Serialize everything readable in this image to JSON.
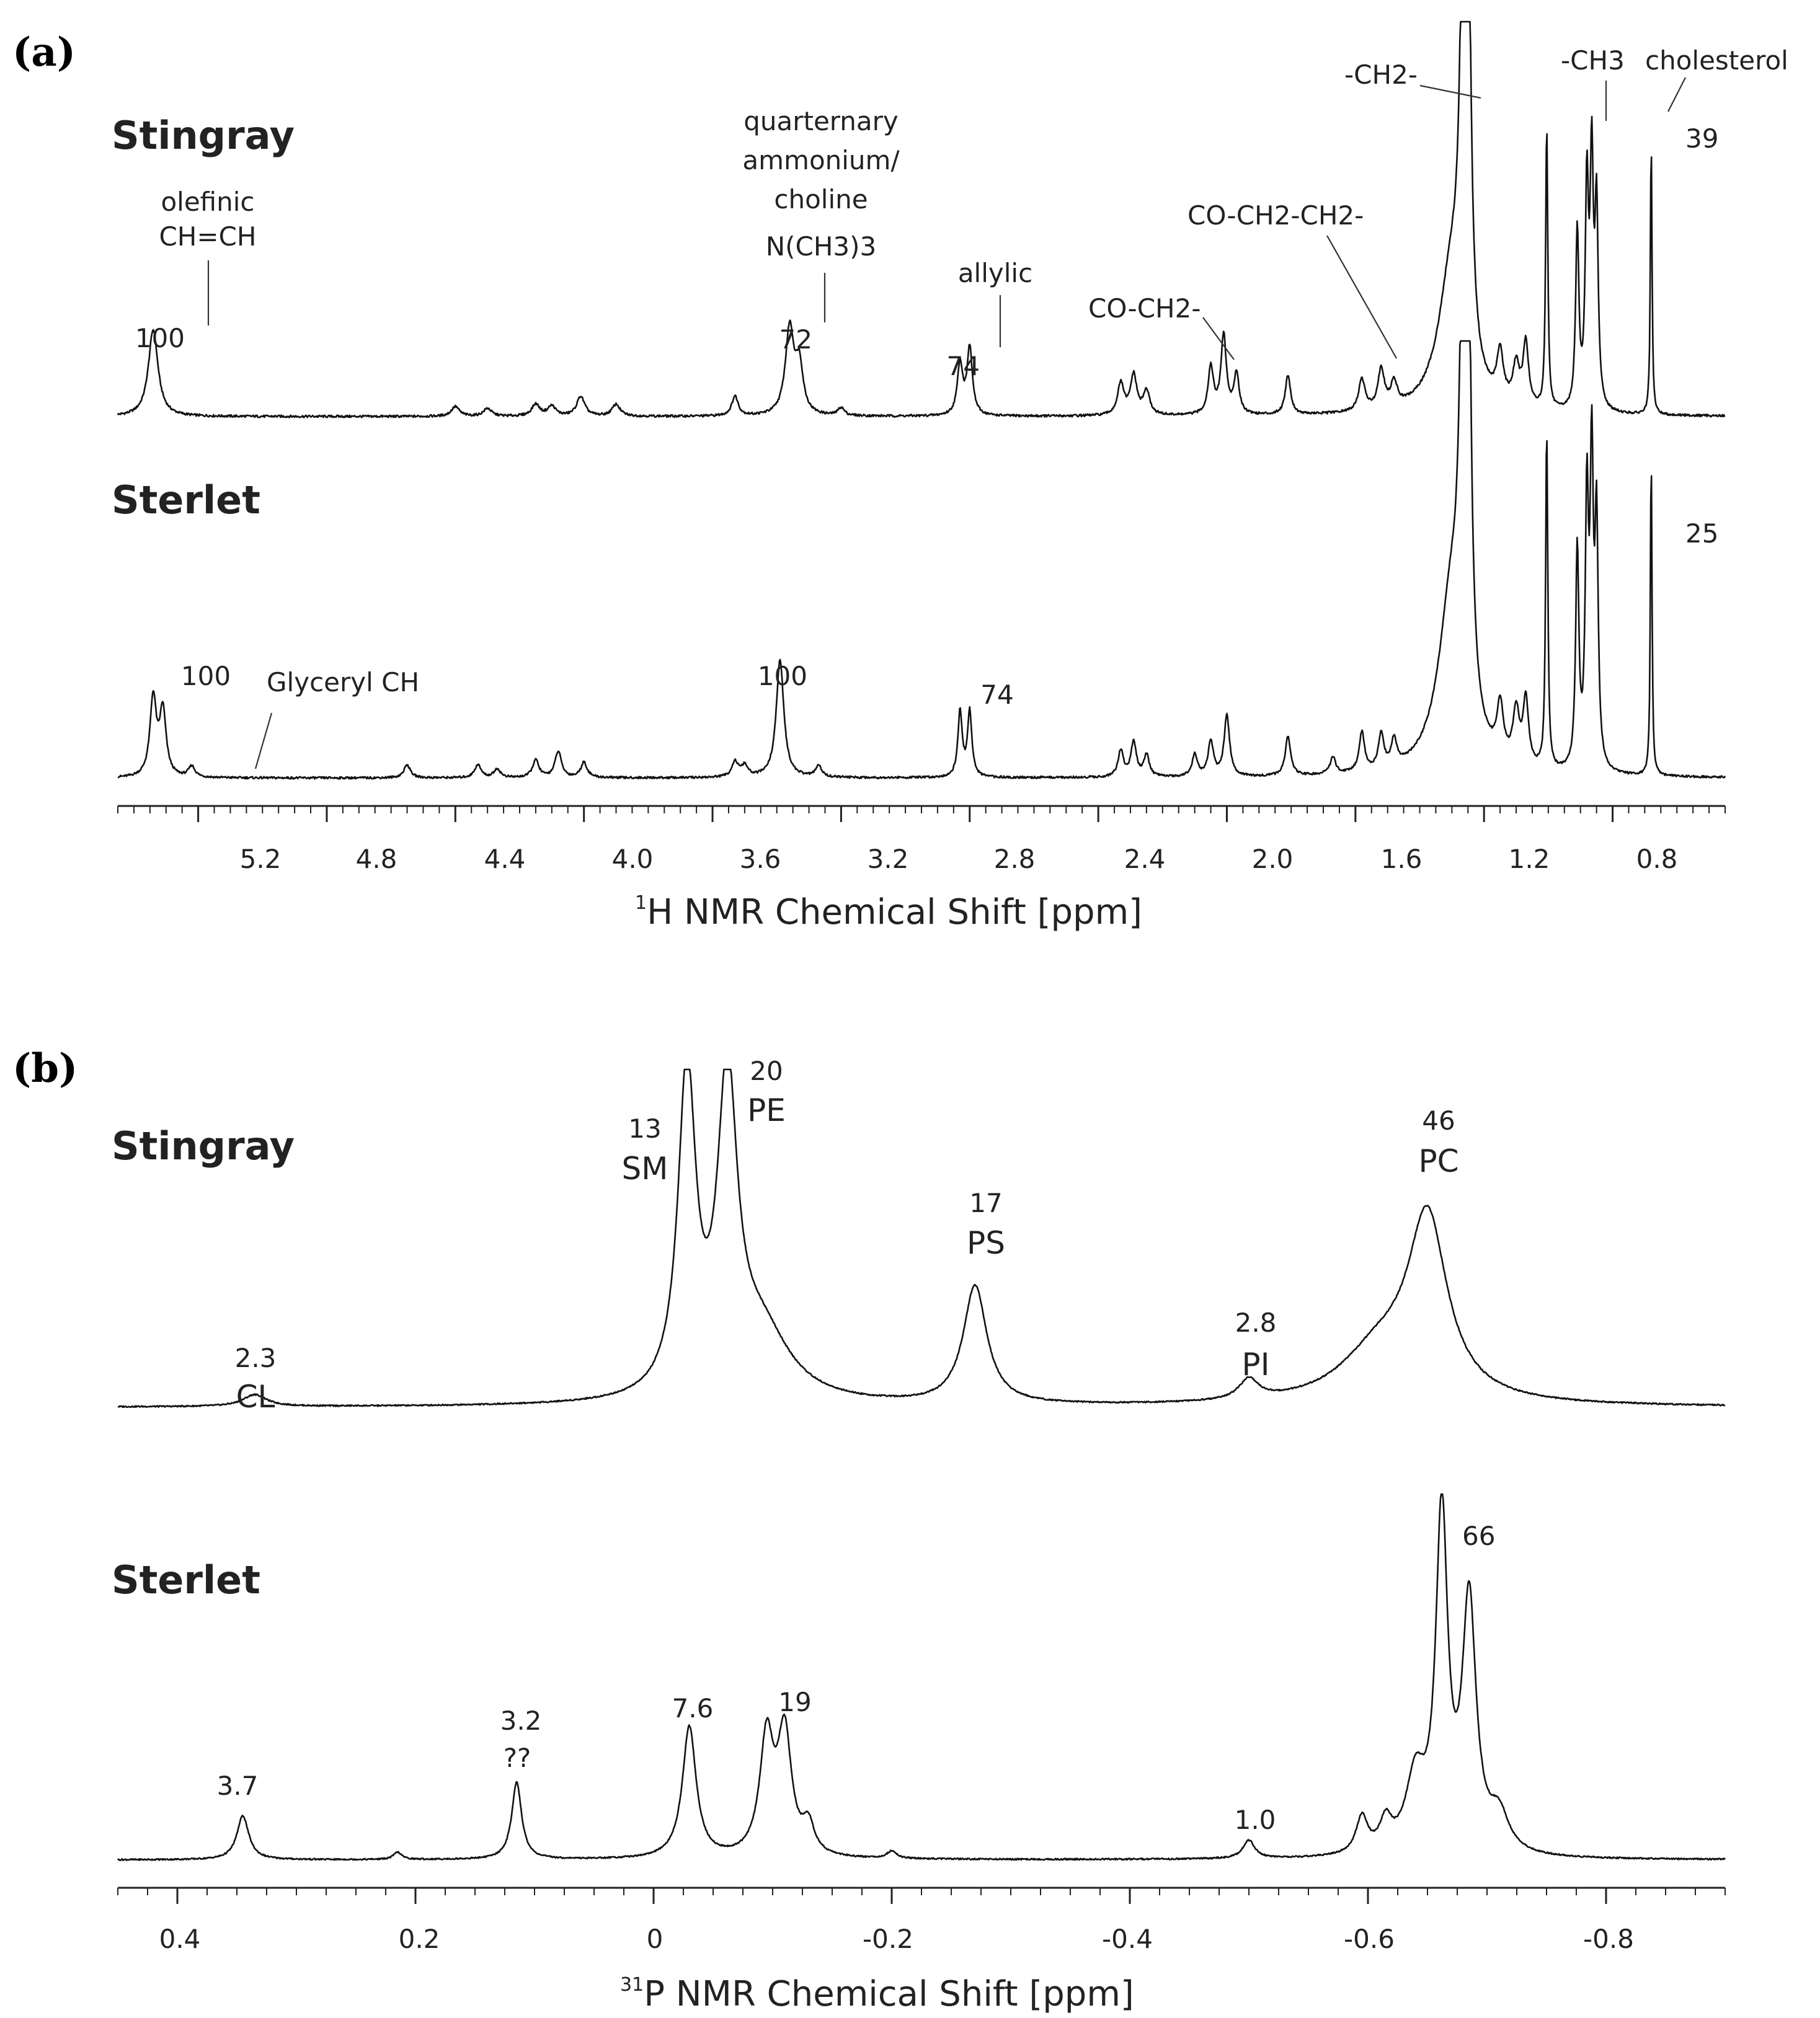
{
  "chart_data": [
    {
      "type": "line",
      "panel_label": "(a)",
      "xlabel": "1H NMR Chemical Shift [ppm]",
      "xlim": [
        5.45,
        0.45
      ],
      "xticks": [
        5.2,
        4.8,
        4.4,
        4.0,
        3.6,
        3.2,
        2.8,
        2.4,
        2.0,
        1.6,
        1.2,
        0.8
      ],
      "tick_labels": [
        "5.2",
        "4.8",
        "4.4",
        "4.0",
        "3.6",
        "3.2",
        "2.8",
        "2.4",
        "2.0",
        "1.6",
        "1.2",
        "0.8"
      ],
      "series": [
        {
          "name": "Stingray",
          "peaks": [
            {
              "ppm": 5.34,
              "height": 0.22,
              "width": 0.018
            },
            {
              "ppm": 4.4,
              "height": 0.025,
              "width": 0.015
            },
            {
              "ppm": 4.3,
              "height": 0.02,
              "width": 0.015
            },
            {
              "ppm": 4.15,
              "height": 0.03,
              "width": 0.015
            },
            {
              "ppm": 4.1,
              "height": 0.025,
              "width": 0.015
            },
            {
              "ppm": 4.01,
              "height": 0.05,
              "width": 0.015
            },
            {
              "ppm": 3.9,
              "height": 0.03,
              "width": 0.015
            },
            {
              "ppm": 3.53,
              "height": 0.05,
              "width": 0.012
            },
            {
              "ppm": 3.36,
              "height": 0.22,
              "width": 0.016
            },
            {
              "ppm": 3.33,
              "height": 0.12,
              "width": 0.014
            },
            {
              "ppm": 3.2,
              "height": 0.02,
              "width": 0.012
            },
            {
              "ppm": 2.83,
              "height": 0.13,
              "width": 0.01
            },
            {
              "ppm": 2.8,
              "height": 0.17,
              "width": 0.01
            },
            {
              "ppm": 2.33,
              "height": 0.08,
              "width": 0.012
            },
            {
              "ppm": 2.29,
              "height": 0.1,
              "width": 0.012
            },
            {
              "ppm": 2.25,
              "height": 0.06,
              "width": 0.012
            },
            {
              "ppm": 2.05,
              "height": 0.12,
              "width": 0.01
            },
            {
              "ppm": 2.01,
              "height": 0.2,
              "width": 0.01
            },
            {
              "ppm": 1.97,
              "height": 0.1,
              "width": 0.01
            },
            {
              "ppm": 1.81,
              "height": 0.1,
              "width": 0.01
            },
            {
              "ppm": 1.58,
              "height": 0.08,
              "width": 0.012
            },
            {
              "ppm": 1.52,
              "height": 0.1,
              "width": 0.012
            },
            {
              "ppm": 1.48,
              "height": 0.06,
              "width": 0.012
            },
            {
              "ppm": 1.3,
              "height": 0.35,
              "width": 0.05
            },
            {
              "ppm": 1.265,
              "height": 0.9,
              "width": 0.012
            },
            {
              "ppm": 1.25,
              "height": 1.0,
              "width": 0.01
            },
            {
              "ppm": 1.15,
              "height": 0.12,
              "width": 0.012
            },
            {
              "ppm": 1.1,
              "height": 0.1,
              "width": 0.012
            },
            {
              "ppm": 1.07,
              "height": 0.16,
              "width": 0.01
            },
            {
              "ppm": 1.005,
              "height": 0.72,
              "width": 0.004
            },
            {
              "ppm": 0.91,
              "height": 0.45,
              "width": 0.006
            },
            {
              "ppm": 0.88,
              "height": 0.55,
              "width": 0.006
            },
            {
              "ppm": 0.865,
              "height": 0.6,
              "width": 0.006
            },
            {
              "ppm": 0.85,
              "height": 0.5,
              "width": 0.006
            },
            {
              "ppm": 0.68,
              "height": 0.7,
              "width": 0.003
            }
          ]
        },
        {
          "name": "Sterlet",
          "peaks": [
            {
              "ppm": 5.34,
              "height": 0.18,
              "width": 0.012
            },
            {
              "ppm": 5.31,
              "height": 0.15,
              "width": 0.012
            },
            {
              "ppm": 5.22,
              "height": 0.025,
              "width": 0.012
            },
            {
              "ppm": 4.55,
              "height": 0.03,
              "width": 0.012
            },
            {
              "ppm": 4.33,
              "height": 0.03,
              "width": 0.012
            },
            {
              "ppm": 4.27,
              "height": 0.02,
              "width": 0.012
            },
            {
              "ppm": 4.15,
              "height": 0.04,
              "width": 0.012
            },
            {
              "ppm": 4.08,
              "height": 0.06,
              "width": 0.012
            },
            {
              "ppm": 4.0,
              "height": 0.035,
              "width": 0.012
            },
            {
              "ppm": 3.53,
              "height": 0.035,
              "width": 0.012
            },
            {
              "ppm": 3.5,
              "height": 0.025,
              "width": 0.012
            },
            {
              "ppm": 3.39,
              "height": 0.27,
              "width": 0.014
            },
            {
              "ppm": 3.27,
              "height": 0.025,
              "width": 0.012
            },
            {
              "ppm": 2.83,
              "height": 0.15,
              "width": 0.008
            },
            {
              "ppm": 2.8,
              "height": 0.15,
              "width": 0.008
            },
            {
              "ppm": 2.33,
              "height": 0.06,
              "width": 0.01
            },
            {
              "ppm": 2.29,
              "height": 0.08,
              "width": 0.01
            },
            {
              "ppm": 2.25,
              "height": 0.05,
              "width": 0.01
            },
            {
              "ppm": 2.1,
              "height": 0.05,
              "width": 0.01
            },
            {
              "ppm": 2.05,
              "height": 0.08,
              "width": 0.01
            },
            {
              "ppm": 2.0,
              "height": 0.14,
              "width": 0.01
            },
            {
              "ppm": 1.81,
              "height": 0.09,
              "width": 0.01
            },
            {
              "ppm": 1.67,
              "height": 0.04,
              "width": 0.01
            },
            {
              "ppm": 1.58,
              "height": 0.09,
              "width": 0.01
            },
            {
              "ppm": 1.52,
              "height": 0.08,
              "width": 0.01
            },
            {
              "ppm": 1.48,
              "height": 0.06,
              "width": 0.01
            },
            {
              "ppm": 1.3,
              "height": 0.4,
              "width": 0.05
            },
            {
              "ppm": 1.265,
              "height": 0.9,
              "width": 0.012
            },
            {
              "ppm": 1.25,
              "height": 1.0,
              "width": 0.01
            },
            {
              "ppm": 1.15,
              "height": 0.12,
              "width": 0.012
            },
            {
              "ppm": 1.1,
              "height": 0.12,
              "width": 0.012
            },
            {
              "ppm": 1.07,
              "height": 0.15,
              "width": 0.01
            },
            {
              "ppm": 1.005,
              "height": 0.78,
              "width": 0.004
            },
            {
              "ppm": 0.91,
              "height": 0.5,
              "width": 0.006
            },
            {
              "ppm": 0.88,
              "height": 0.6,
              "width": 0.006
            },
            {
              "ppm": 0.865,
              "height": 0.68,
              "width": 0.006
            },
            {
              "ppm": 0.85,
              "height": 0.55,
              "width": 0.006
            },
            {
              "ppm": 0.68,
              "height": 0.74,
              "width": 0.003
            }
          ]
        }
      ],
      "labels": {
        "stingray": {
          "olefinic_line1": "olefinic",
          "olefinic_line2": "CH=CH",
          "olefinic_value": "100",
          "qa_line1": "quarternary",
          "qa_line2": "ammonium/",
          "qa_line3": "choline",
          "qa_line4": "N(CH3)3",
          "qa_value": "72",
          "allylic": "allylic",
          "allylic_value": "74",
          "co_ch2": "CO-CH2-",
          "co_ch2_ch2": "CO-CH2-CH2-",
          "ch2": "-CH2-",
          "ch3": "-CH3",
          "cholesterol": "cholesterol",
          "cholesterol_value": "39"
        },
        "sterlet": {
          "olefinic_value": "100",
          "glyceryl": "Glyceryl CH",
          "choline_value": "100",
          "allylic_value": "74",
          "cholesterol_value": "25"
        }
      }
    },
    {
      "type": "line",
      "panel_label": "(b)",
      "xlabel": "31P NMR Chemical Shift [ppm]",
      "xlim": [
        0.45,
        -0.9
      ],
      "xticks": [
        0.4,
        0.2,
        0,
        -0.2,
        -0.4,
        -0.6,
        -0.8
      ],
      "tick_labels": [
        "0.4",
        "0.2",
        "0",
        "-0.2",
        "-0.4",
        "-0.6",
        "-0.8"
      ],
      "series": [
        {
          "name": "Stingray",
          "peaks": [
            {
              "ppm": 0.335,
              "height": 0.035,
              "width": 0.012
            },
            {
              "ppm": -0.028,
              "height": 0.95,
              "width": 0.009
            },
            {
              "ppm": -0.062,
              "height": 0.9,
              "width": 0.01
            },
            {
              "ppm": -0.09,
              "height": 0.2,
              "width": 0.03
            },
            {
              "ppm": -0.27,
              "height": 0.35,
              "width": 0.012
            },
            {
              "ppm": -0.5,
              "height": 0.06,
              "width": 0.01
            },
            {
              "ppm": -0.61,
              "height": 0.15,
              "width": 0.04
            },
            {
              "ppm": -0.65,
              "height": 0.52,
              "width": 0.02
            }
          ]
        },
        {
          "name": "Sterlet",
          "peaks": [
            {
              "ppm": 0.345,
              "height": 0.12,
              "width": 0.006
            },
            {
              "ppm": 0.215,
              "height": 0.02,
              "width": 0.004
            },
            {
              "ppm": 0.115,
              "height": 0.21,
              "width": 0.005
            },
            {
              "ppm": -0.03,
              "height": 0.36,
              "width": 0.007
            },
            {
              "ppm": -0.095,
              "height": 0.32,
              "width": 0.007
            },
            {
              "ppm": -0.11,
              "height": 0.33,
              "width": 0.007
            },
            {
              "ppm": -0.13,
              "height": 0.08,
              "width": 0.006
            },
            {
              "ppm": -0.2,
              "height": 0.02,
              "width": 0.005
            },
            {
              "ppm": -0.5,
              "height": 0.05,
              "width": 0.006
            },
            {
              "ppm": -0.595,
              "height": 0.1,
              "width": 0.006
            },
            {
              "ppm": -0.615,
              "height": 0.08,
              "width": 0.006
            },
            {
              "ppm": -0.64,
              "height": 0.2,
              "width": 0.01
            },
            {
              "ppm": -0.662,
              "height": 0.92,
              "width": 0.006
            },
            {
              "ppm": -0.685,
              "height": 0.68,
              "width": 0.007
            },
            {
              "ppm": -0.71,
              "height": 0.1,
              "width": 0.01
            }
          ]
        }
      ],
      "labels": {
        "stingray": {
          "cl_value": "2.3",
          "cl": "CL",
          "sm_value": "13",
          "sm": "SM",
          "pe_value": "20",
          "pe": "PE",
          "ps_value": "17",
          "ps": "PS",
          "pi_value": "2.8",
          "pi": "PI",
          "pc_value": "46",
          "pc": "PC"
        },
        "sterlet": {
          "v1": "3.7",
          "v2_value": "3.2",
          "v2": "??",
          "v3": "7.6",
          "v4": "19",
          "v5": "1.0",
          "v6": "66"
        }
      }
    }
  ],
  "species": {
    "stingray": "Stingray",
    "sterlet": "Sterlet"
  },
  "axis_a": {
    "title_sup": "1",
    "title_rest": "H NMR Chemical Shift [ppm]"
  },
  "axis_b": {
    "title_sup": "31",
    "title_rest": "P NMR Chemical Shift [ppm]"
  }
}
